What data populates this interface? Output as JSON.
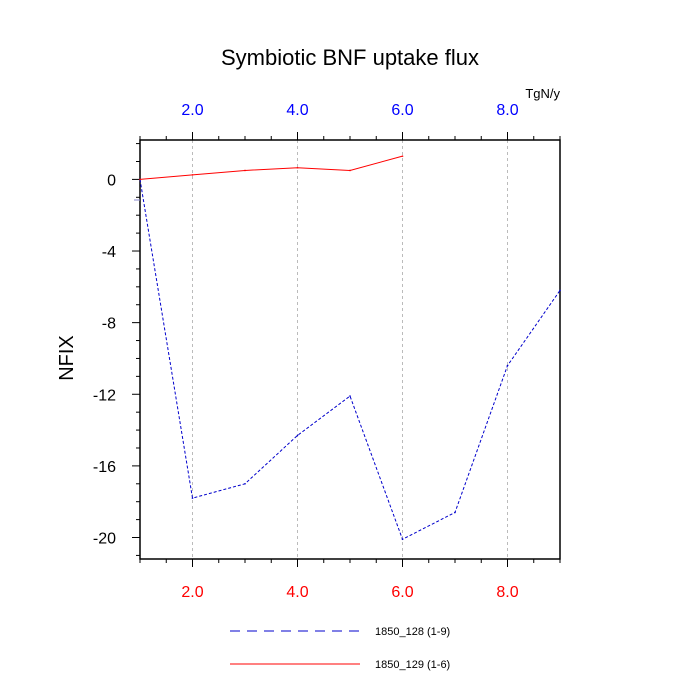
{
  "chart_data": {
    "type": "line",
    "title": "Symbiotic BNF uptake flux",
    "units": "TgN/y",
    "ylabel": "NFIX",
    "xlim": [
      1,
      9
    ],
    "ylim": [
      -21.2,
      2.2
    ],
    "x_ticks": [
      2.0,
      4.0,
      6.0,
      8.0
    ],
    "x_tick_labels": [
      "2.0",
      "4.0",
      "6.0",
      "8.0"
    ],
    "y_ticks": [
      0,
      -4,
      -8,
      -12,
      -16,
      -20
    ],
    "y_tick_labels": [
      "0",
      "-4",
      "-8",
      "-12",
      "-16",
      "-20"
    ],
    "grid": "vertical dashed at major x ticks",
    "colors": {
      "bottom_axis_labels": "#ff0000",
      "top_axis_labels": "#0000ff",
      "series_dashed": "#0000cc",
      "series_solid": "#ff0000"
    },
    "series": [
      {
        "name": "1850_128 (1-9)",
        "style": "dashed",
        "color": "#0000cc",
        "x": [
          1,
          2,
          3,
          4,
          5,
          6,
          7,
          8,
          9
        ],
        "values": [
          0.0,
          -17.8,
          -17.0,
          -14.3,
          -12.1,
          -20.1,
          -18.6,
          -10.4,
          -6.2
        ]
      },
      {
        "name": "1850_129 (1-6)",
        "style": "solid",
        "color": "#ff0000",
        "x": [
          1,
          2,
          3,
          4,
          5,
          6
        ],
        "values": [
          0.0,
          0.25,
          0.5,
          0.65,
          0.5,
          1.3
        ]
      }
    ],
    "legend_position": "bottom-center"
  }
}
